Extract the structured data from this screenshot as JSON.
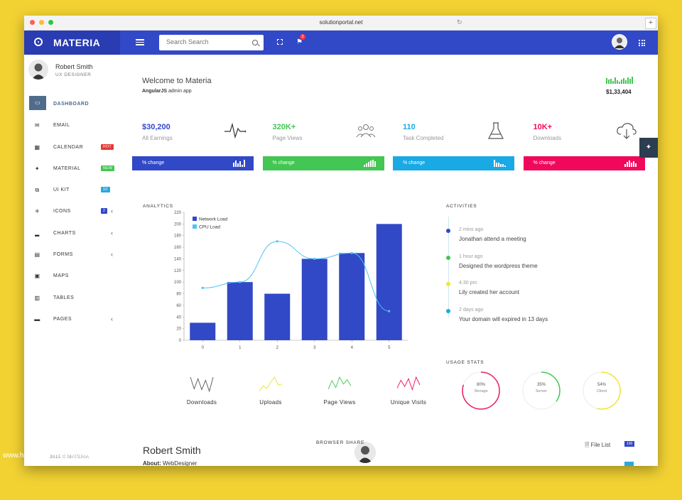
{
  "browser": {
    "url": "solutionportal.net"
  },
  "app": {
    "name": "MATERIA"
  },
  "search": {
    "placeholder": "Search Search"
  },
  "notifications": {
    "count": "3"
  },
  "user": {
    "name": "Robert Smith",
    "role": "UX DESIGNER"
  },
  "nav": [
    {
      "label": "DASHBOARD",
      "icon": "monitor-icon",
      "active": true
    },
    {
      "label": "EMAIL",
      "icon": "mail-icon"
    },
    {
      "label": "CALENDAR",
      "icon": "calendar-icon",
      "badge": "HOT",
      "badge_color": "#e53935"
    },
    {
      "label": "MATERIAL",
      "icon": "bulb-icon",
      "badge": "NEW",
      "badge_color": "#43c653"
    },
    {
      "label": "UI KIT",
      "icon": "puzzle-icon",
      "badge": "10",
      "badge_color": "#29a9df"
    },
    {
      "label": "ICONS",
      "icon": "asterisk-icon",
      "badge": "2",
      "badge_color": "#3148c7",
      "chevron": true
    },
    {
      "label": "CHARTS",
      "icon": "chart-icon",
      "chevron": true
    },
    {
      "label": "FORMS",
      "icon": "document-icon",
      "chevron": true
    },
    {
      "label": "MAPS",
      "icon": "map-icon"
    },
    {
      "label": "TABLES",
      "icon": "table-icon"
    },
    {
      "label": "PAGES",
      "icon": "pages-icon",
      "chevron": true
    }
  ],
  "copyright": "2015 © MATERIA",
  "header": {
    "welcome": "Welcome to Materia",
    "subtitle_bold": "AngularJS",
    "subtitle_rest": " admin app",
    "earnings": "$1,33,404"
  },
  "stats": [
    {
      "value": "$30,200",
      "label": "All Earnings",
      "color": "#3148c7",
      "icon": "pulse-icon",
      "change": "% change"
    },
    {
      "value": "320K+",
      "label": "Page Views",
      "color": "#43c653",
      "icon": "users-icon",
      "change": "% change"
    },
    {
      "value": "110",
      "label": "Task Completed",
      "color": "#19a9e5",
      "icon": "flask-icon",
      "change": "% change"
    },
    {
      "value": "10K+",
      "label": "Downloads",
      "color": "#f0095b",
      "icon": "cloud-download-icon",
      "change": "% change"
    }
  ],
  "analytics": {
    "title": "ANALYTICS"
  },
  "chart_data": {
    "type": "bar",
    "categories": [
      "0",
      "1",
      "2",
      "3",
      "4",
      "5"
    ],
    "series": [
      {
        "name": "Network Load",
        "type": "bar",
        "color": "#3148c7",
        "values": [
          30,
          100,
          80,
          140,
          150,
          200
        ]
      },
      {
        "name": "CPU Load",
        "type": "line",
        "color": "#4fc3f7",
        "values": [
          90,
          100,
          170,
          140,
          150,
          50
        ]
      }
    ],
    "ylim": [
      0,
      220
    ],
    "yticks": [
      "0",
      "20",
      "40",
      "60",
      "80",
      "100",
      "120",
      "140",
      "160",
      "180",
      "200",
      "220"
    ],
    "legend": "top-left"
  },
  "mini_charts": [
    {
      "label": "Downloads",
      "color": "#555555",
      "values": [
        20,
        5,
        18,
        4,
        16,
        2,
        20
      ]
    },
    {
      "label": "Uploads",
      "color": "#e5e535",
      "values": [
        2,
        8,
        5,
        12,
        18,
        9,
        10
      ]
    },
    {
      "label": "Page Views",
      "color": "#43c653",
      "values": [
        4,
        14,
        6,
        18,
        10,
        15,
        8
      ]
    },
    {
      "label": "Unique Visits",
      "color": "#f0095b",
      "values": [
        6,
        16,
        8,
        18,
        4,
        20,
        10
      ]
    }
  ],
  "activities": {
    "title": "ACTIVITIES",
    "items": [
      {
        "time": "2 mins ago",
        "text": "Jonathan attend a meeting",
        "color": "#3148c7"
      },
      {
        "time": "1 hour ago",
        "text": "Designed the wordpress theme",
        "color": "#43c653"
      },
      {
        "time": "4:30 pm",
        "text": "Lily created her account",
        "color": "#f5e52a"
      },
      {
        "time": "2 days ago",
        "text": "Your domain will expired in 13 days",
        "color": "#19a9e5"
      }
    ]
  },
  "usage": {
    "title": "USAGE STATS",
    "items": [
      {
        "pct": "80%",
        "label": "Storage",
        "value": 0.8,
        "color": "#e91e63"
      },
      {
        "pct": "35%",
        "label": "Server",
        "value": 0.35,
        "color": "#43c653"
      },
      {
        "pct": "54%",
        "label": "Client",
        "value": 0.54,
        "color": "#f5e52a"
      }
    ]
  },
  "profile": {
    "name": "Robert Smith",
    "about_label": "About:",
    "about_value": "WebDesigner"
  },
  "browser_share": {
    "title": "BROWSER SHARE"
  },
  "files": {
    "label": "File List",
    "badge": "100"
  },
  "watermark": "www.heritagechristiancollege.com"
}
